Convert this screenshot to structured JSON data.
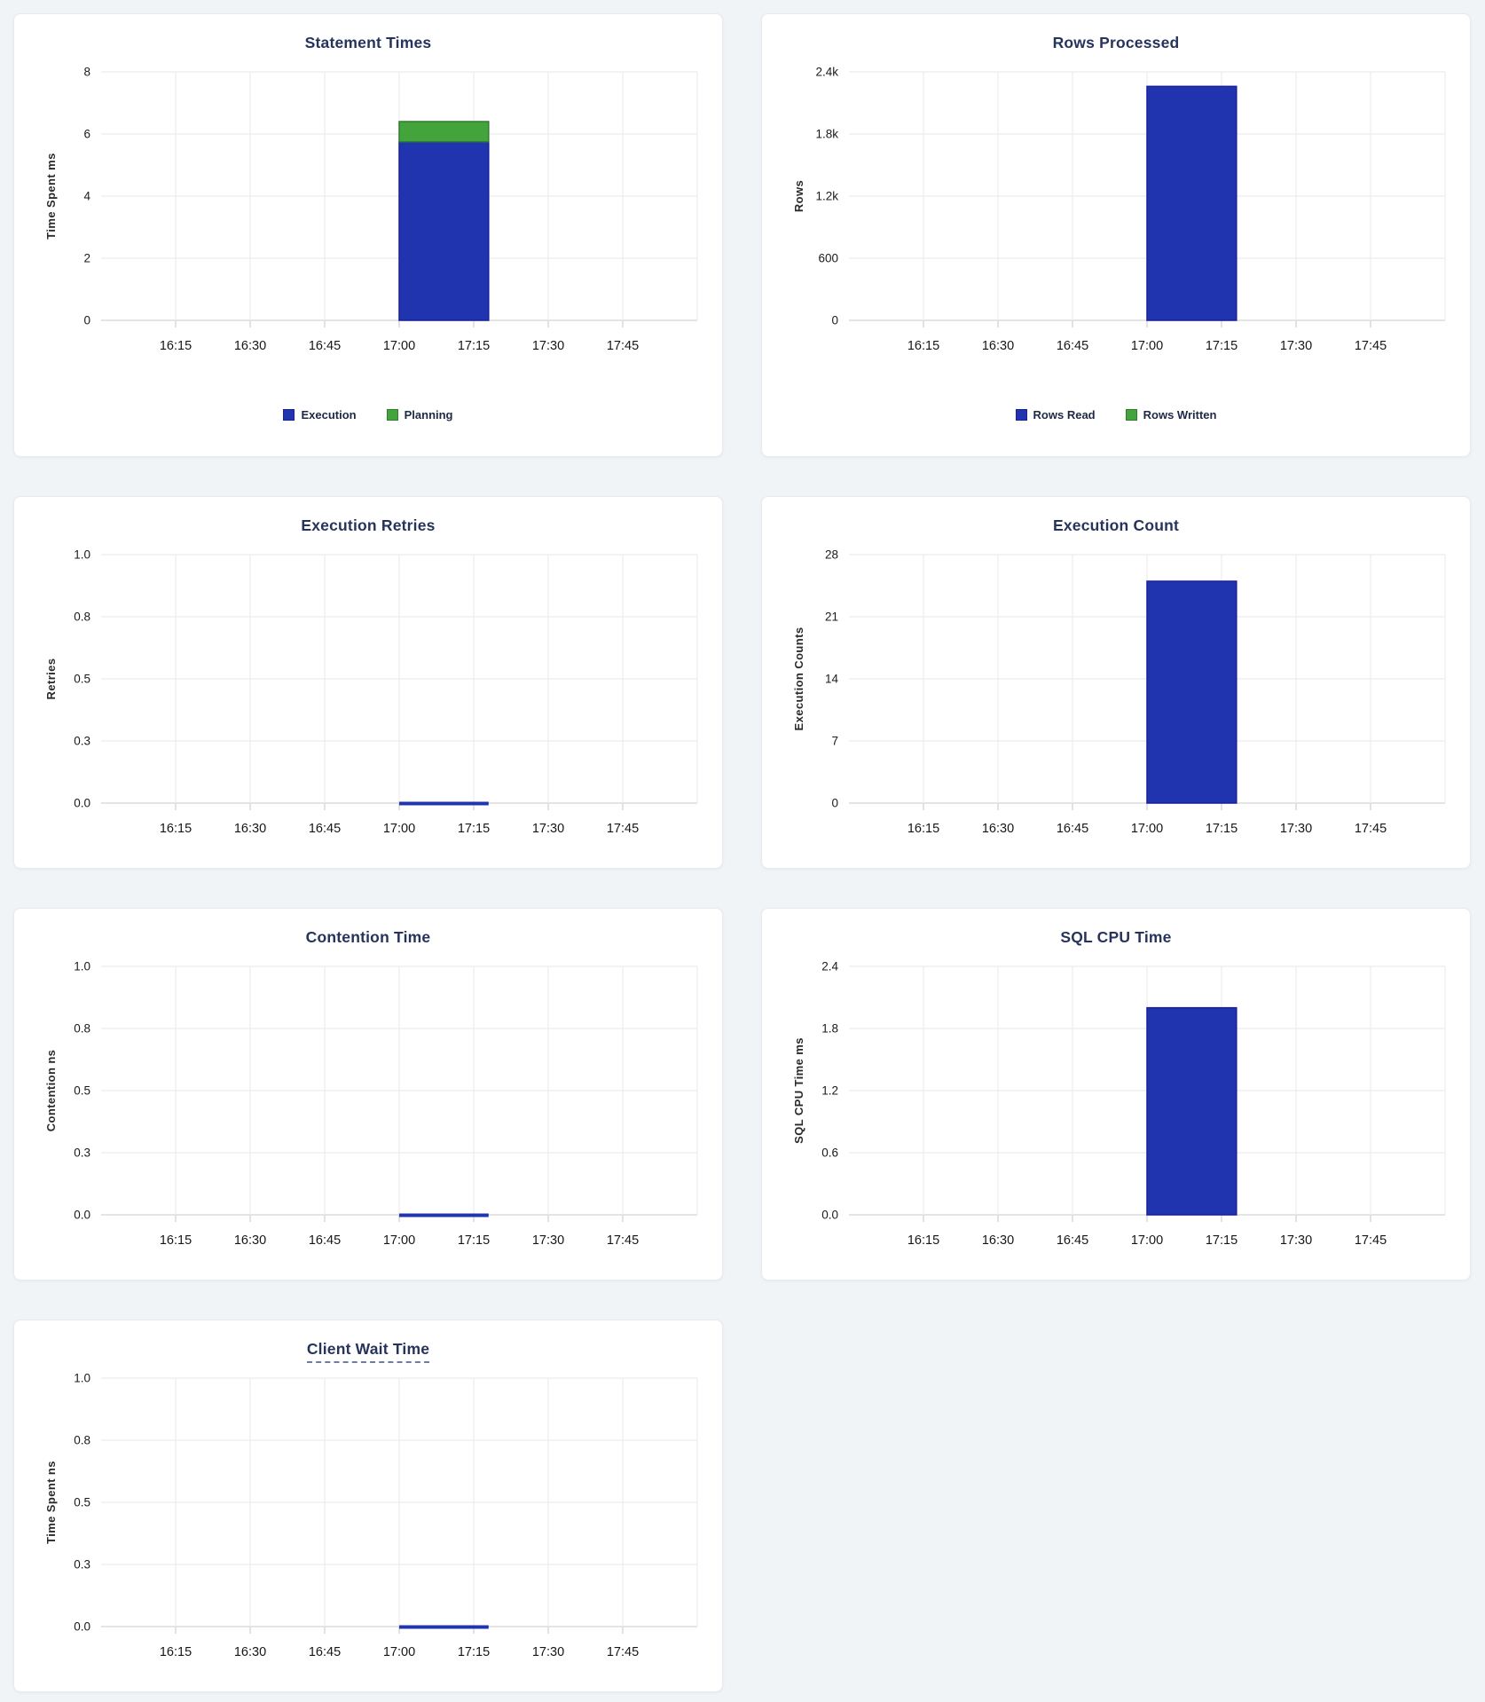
{
  "page": {
    "background_color": "#f0f4f7"
  },
  "colors": {
    "card_background": "#ffffff",
    "card_border": "#e6e9ed",
    "title_text": "#26345c",
    "title_underline": "#707d9e",
    "axis_text": "#161616",
    "axis_label_text": "#2a2a2a",
    "legend_text": "#1d2945",
    "gridline": "#ececec",
    "baseline": "#dcdcdc",
    "tick_mark": "#d8d8d8",
    "series_blue": "#2134b0",
    "series_blue_stroke": "#18209a",
    "series_green": "#44a43c",
    "series_green_stroke": "#2f7d2f"
  },
  "time_axis": {
    "domain_start": "16:00",
    "domain_end": "18:00",
    "ticks": [
      "16:15",
      "16:30",
      "16:45",
      "17:00",
      "17:15",
      "17:30",
      "17:45"
    ]
  },
  "chart_data": [
    {
      "id": "statement-times",
      "type": "bar",
      "title": "Statement Times",
      "title_underlined": false,
      "xlabel": "",
      "ylabel": "Time Spent ms",
      "ylim": [
        0,
        8
      ],
      "y_tick_labels": [
        "0",
        "2",
        "4",
        "6",
        "8"
      ],
      "x_ticks": [
        "16:15",
        "16:30",
        "16:45",
        "17:00",
        "17:15",
        "17:30",
        "17:45"
      ],
      "grid": true,
      "stacked": true,
      "bar_start": "17:00",
      "bar_end": "17:18",
      "series": [
        {
          "name": "Execution",
          "color": "blue",
          "value": 5.75
        },
        {
          "name": "Planning",
          "color": "green",
          "value": 0.65
        }
      ],
      "legend_visible": true,
      "legend_position": "bottom-center"
    },
    {
      "id": "rows-processed",
      "type": "bar",
      "title": "Rows Processed",
      "title_underlined": false,
      "xlabel": "",
      "ylabel": "Rows",
      "ylim": [
        0,
        2400
      ],
      "y_tick_labels": [
        "0",
        "600",
        "1.2k",
        "1.8k",
        "2.4k"
      ],
      "x_ticks": [
        "16:15",
        "16:30",
        "16:45",
        "17:00",
        "17:15",
        "17:30",
        "17:45"
      ],
      "grid": true,
      "stacked": true,
      "bar_start": "17:00",
      "bar_end": "17:18",
      "series": [
        {
          "name": "Rows Read",
          "color": "blue",
          "value": 2260
        },
        {
          "name": "Rows Written",
          "color": "green",
          "value": 0
        }
      ],
      "legend_visible": true,
      "legend_position": "bottom-center"
    },
    {
      "id": "execution-retries",
      "type": "bar",
      "title": "Execution Retries",
      "title_underlined": false,
      "xlabel": "",
      "ylabel": "Retries",
      "ylim": [
        0,
        1
      ],
      "y_tick_labels": [
        "0.0",
        "0.3",
        "0.5",
        "0.8",
        "1.0"
      ],
      "x_ticks": [
        "16:15",
        "16:30",
        "16:45",
        "17:00",
        "17:15",
        "17:30",
        "17:45"
      ],
      "grid": true,
      "stacked": false,
      "bar_start": "17:00",
      "bar_end": "17:18",
      "series": [
        {
          "name": "Retries",
          "color": "blue",
          "value": 0
        }
      ],
      "legend_visible": false,
      "legend_position": "none"
    },
    {
      "id": "execution-count",
      "type": "bar",
      "title": "Execution Count",
      "title_underlined": false,
      "xlabel": "",
      "ylabel": "Execution Counts",
      "ylim": [
        0,
        28
      ],
      "y_tick_labels": [
        "0",
        "7",
        "14",
        "21",
        "28"
      ],
      "x_ticks": [
        "16:15",
        "16:30",
        "16:45",
        "17:00",
        "17:15",
        "17:30",
        "17:45"
      ],
      "grid": true,
      "stacked": false,
      "bar_start": "17:00",
      "bar_end": "17:18",
      "series": [
        {
          "name": "Execution Count",
          "color": "blue",
          "value": 25
        }
      ],
      "legend_visible": false,
      "legend_position": "none"
    },
    {
      "id": "contention-time",
      "type": "bar",
      "title": "Contention Time",
      "title_underlined": false,
      "xlabel": "",
      "ylabel": "Contention ns",
      "ylim": [
        0,
        1
      ],
      "y_tick_labels": [
        "0.0",
        "0.3",
        "0.5",
        "0.8",
        "1.0"
      ],
      "x_ticks": [
        "16:15",
        "16:30",
        "16:45",
        "17:00",
        "17:15",
        "17:30",
        "17:45"
      ],
      "grid": true,
      "stacked": false,
      "bar_start": "17:00",
      "bar_end": "17:18",
      "series": [
        {
          "name": "Contention ns",
          "color": "blue",
          "value": 0
        }
      ],
      "legend_visible": false,
      "legend_position": "none"
    },
    {
      "id": "sql-cpu-time",
      "type": "bar",
      "title": "SQL CPU Time",
      "title_underlined": false,
      "xlabel": "",
      "ylabel": "SQL CPU Time ms",
      "ylim": [
        0,
        2.4
      ],
      "y_tick_labels": [
        "0.0",
        "0.6",
        "1.2",
        "1.8",
        "2.4"
      ],
      "x_ticks": [
        "16:15",
        "16:30",
        "16:45",
        "17:00",
        "17:15",
        "17:30",
        "17:45"
      ],
      "grid": true,
      "stacked": false,
      "bar_start": "17:00",
      "bar_end": "17:18",
      "series": [
        {
          "name": "SQL CPU Time",
          "color": "blue",
          "value": 2.0
        }
      ],
      "legend_visible": false,
      "legend_position": "none"
    },
    {
      "id": "client-wait-time",
      "type": "bar",
      "title": "Client Wait Time",
      "title_underlined": true,
      "xlabel": "",
      "ylabel": "Time Spent ns",
      "ylim": [
        0,
        1
      ],
      "y_tick_labels": [
        "0.0",
        "0.3",
        "0.5",
        "0.8",
        "1.0"
      ],
      "x_ticks": [
        "16:15",
        "16:30",
        "16:45",
        "17:00",
        "17:15",
        "17:30",
        "17:45"
      ],
      "grid": true,
      "stacked": false,
      "bar_start": "17:00",
      "bar_end": "17:18",
      "series": [
        {
          "name": "Time Spent ns",
          "color": "blue",
          "value": 0
        }
      ],
      "legend_visible": false,
      "legend_position": "none"
    }
  ]
}
